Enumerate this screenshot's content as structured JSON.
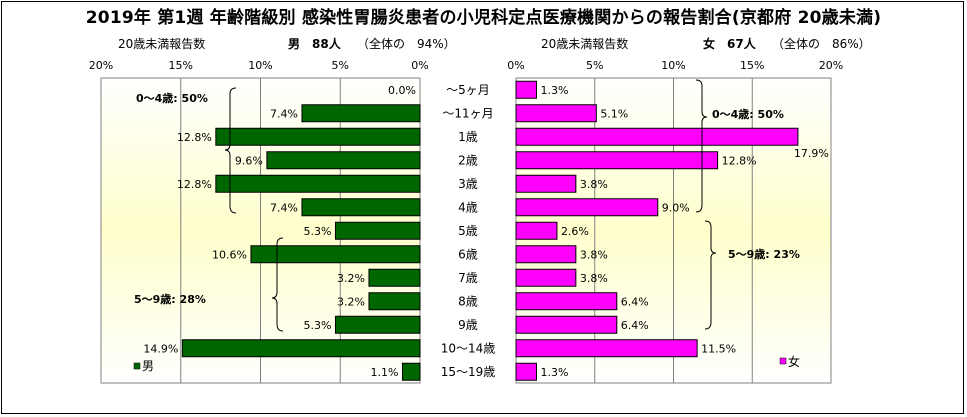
{
  "title": "2019年 第1週 年齢階級別 感染性胃腸炎患者の小児科定点医療機関からの報告割合(京都府 20歳未満)",
  "left_header": {
    "axis_title": "20歳未満報告数",
    "sex_count": "男　88人",
    "share": "（全体の　94%）"
  },
  "right_header": {
    "axis_title": "20歳未満報告数",
    "sex_count": "女　67人",
    "share": "（全体の　86%）"
  },
  "colors": {
    "male": "#006600",
    "female": "#ff00ff",
    "plot_bg_center": "#ffffcc",
    "plot_bg_edge": "#ffffff"
  },
  "chart_data": {
    "type": "bar",
    "orientation": "horizontal-pyramid",
    "categories": [
      "～5ヶ月",
      "～11ヶ月",
      "1歳",
      "2歳",
      "3歳",
      "4歳",
      "5歳",
      "6歳",
      "7歳",
      "8歳",
      "9歳",
      "10～14歳",
      "15～19歳"
    ],
    "series": [
      {
        "name": "男",
        "values": [
          0.0,
          7.4,
          12.8,
          9.6,
          12.8,
          7.4,
          5.3,
          10.6,
          3.2,
          3.2,
          5.3,
          14.9,
          1.1
        ],
        "labels": [
          "0.0%",
          "7.4%",
          "12.8%",
          "9.6%",
          "12.8%",
          "7.4%",
          "5.3%",
          "10.6%",
          "3.2%",
          "3.2%",
          "5.3%",
          "14.9%",
          "1.1%"
        ],
        "xlim": [
          0,
          20
        ],
        "ticks": [
          "20%",
          "15%",
          "10%",
          "5%",
          "0%"
        ]
      },
      {
        "name": "女",
        "values": [
          1.3,
          5.1,
          17.9,
          12.8,
          3.8,
          9.0,
          2.6,
          3.8,
          3.8,
          6.4,
          6.4,
          11.5,
          1.3
        ],
        "labels": [
          "1.3%",
          "5.1%",
          "17.9%",
          "12.8%",
          "3.8%",
          "9.0%",
          "2.6%",
          "3.8%",
          "3.8%",
          "6.4%",
          "6.4%",
          "11.5%",
          "1.3%"
        ],
        "xlim": [
          0,
          20
        ],
        "ticks": [
          "0%",
          "5%",
          "10%",
          "15%",
          "20%"
        ]
      }
    ],
    "annotations": {
      "male_0_4": "0～4歳: 50%",
      "male_5_9": "5～9歳: 28%",
      "female_0_4": "0～4歳: 50%",
      "female_5_9": "5～9歳: 23%"
    }
  }
}
